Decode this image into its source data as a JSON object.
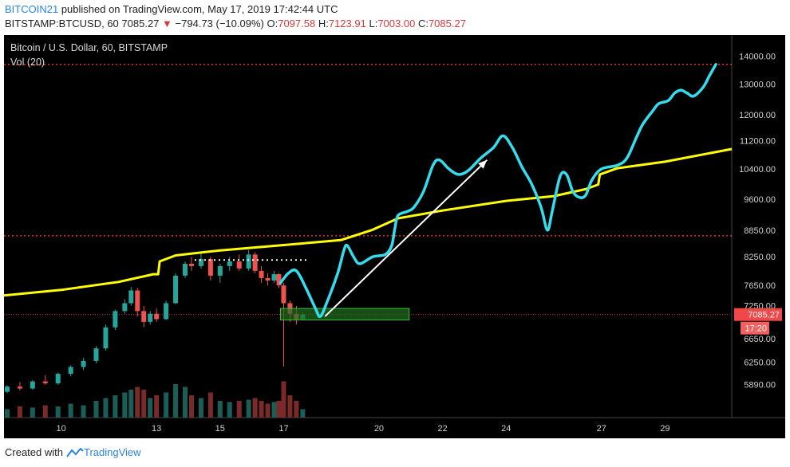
{
  "header": {
    "author": "BITCOIN21",
    "published_text": "published on TradingView.com, May 17, 2019 17:42:44 UTC",
    "symbol": "BITSTAMP:BTCUSD, 60",
    "last": "7085.27",
    "down_arrow": "▼",
    "change": "−794.73 (−10.09%)",
    "o_label": "O:",
    "o_value": "7097.58",
    "h_label": "H:",
    "h_value": "7123.91",
    "l_label": "L:",
    "l_value": "7003.00",
    "c_label": "C:",
    "c_value": "7085.27"
  },
  "legend": {
    "title": "Bitcoin / U.S. Dollar, 60, BITSTAMP",
    "volume": "Vol (20)"
  },
  "footer": {
    "created_with": "Created with",
    "brand": "TradingView"
  },
  "colors": {
    "background": "#000000",
    "axis_text": "#d0d0d0",
    "up": "#26a69a",
    "down": "#ef5350",
    "yellow_line": "#ffff00",
    "cyan_line": "#33ddee",
    "red_level": "#e03030",
    "zone_fill": "#1f6f1f",
    "zone_stroke": "#3fbf3f",
    "price_tag": "#f04848",
    "countdown_tag": "#f06060"
  },
  "chart_data": {
    "type": "candlestick",
    "scale": "log",
    "title": "Bitcoin / U.S. Dollar, 60, BITSTAMP",
    "ylim": [
      5400,
      14800
    ],
    "y_ticks": [
      5890,
      6250,
      6650,
      7250,
      7650,
      8250,
      8850,
      9600,
      10400,
      11200,
      12000,
      13000,
      14000
    ],
    "y_tick_labels": [
      "5890.00",
      "6250.00",
      "6650.00",
      "7250.00",
      "7650.00",
      "8250.00",
      "8850.00",
      "9600.00",
      "10400.00",
      "11200.00",
      "12000.00",
      "13000.00",
      "14000.00"
    ],
    "x_range_days": [
      8.2,
      31.1
    ],
    "x_ticks": [
      10,
      13,
      15,
      17,
      20,
      22,
      24,
      27,
      29
    ],
    "x_tick_labels": [
      "10",
      "13",
      "15",
      "17",
      "20",
      "22",
      "24",
      "27",
      "29"
    ],
    "last_price": 7085.27,
    "last_price_label": "7085.27",
    "countdown_label": "17:20",
    "levels": [
      {
        "name": "top",
        "price": 13700
      },
      {
        "name": "mid",
        "price": 8720
      },
      {
        "name": "current",
        "price": 7085
      }
    ],
    "resistance_dotted": {
      "price": 8180,
      "x_start": 14.2,
      "x_end": 17.8
    },
    "zone": {
      "x_start": 16.9,
      "x_end": 20.95,
      "price_low": 6985,
      "price_high": 7200
    },
    "arrow": {
      "from": [
        18.3,
        7050
      ],
      "to": [
        23.4,
        10650
      ]
    },
    "candles": [
      {
        "d": 8.3,
        "o": 5780,
        "h": 5880,
        "l": 5760,
        "c": 5860
      },
      {
        "d": 8.7,
        "o": 5860,
        "h": 5930,
        "l": 5800,
        "c": 5830
      },
      {
        "d": 9.1,
        "o": 5830,
        "h": 5960,
        "l": 5810,
        "c": 5940
      },
      {
        "d": 9.5,
        "o": 5940,
        "h": 6040,
        "l": 5890,
        "c": 5910
      },
      {
        "d": 9.9,
        "o": 5910,
        "h": 6080,
        "l": 5890,
        "c": 6060
      },
      {
        "d": 10.3,
        "o": 6060,
        "h": 6200,
        "l": 6020,
        "c": 6170
      },
      {
        "d": 10.7,
        "o": 6170,
        "h": 6320,
        "l": 6120,
        "c": 6270
      },
      {
        "d": 11.1,
        "o": 6270,
        "h": 6520,
        "l": 6230,
        "c": 6480
      },
      {
        "d": 11.4,
        "o": 6480,
        "h": 6900,
        "l": 6440,
        "c": 6850
      },
      {
        "d": 11.7,
        "o": 6850,
        "h": 7180,
        "l": 6800,
        "c": 7150
      },
      {
        "d": 12.0,
        "o": 7150,
        "h": 7380,
        "l": 7100,
        "c": 7300
      },
      {
        "d": 12.2,
        "o": 7300,
        "h": 7620,
        "l": 7250,
        "c": 7550
      },
      {
        "d": 12.4,
        "o": 7550,
        "h": 7600,
        "l": 7050,
        "c": 7150
      },
      {
        "d": 12.6,
        "o": 7150,
        "h": 7250,
        "l": 6850,
        "c": 6950
      },
      {
        "d": 12.8,
        "o": 6950,
        "h": 7150,
        "l": 6900,
        "c": 7100
      },
      {
        "d": 13.0,
        "o": 7100,
        "h": 7200,
        "l": 6950,
        "c": 7000
      },
      {
        "d": 13.3,
        "o": 7000,
        "h": 7350,
        "l": 6980,
        "c": 7300
      },
      {
        "d": 13.6,
        "o": 7300,
        "h": 7900,
        "l": 7280,
        "c": 7850
      },
      {
        "d": 13.9,
        "o": 7850,
        "h": 8150,
        "l": 7800,
        "c": 8100
      },
      {
        "d": 14.1,
        "o": 8100,
        "h": 8250,
        "l": 7950,
        "c": 8050
      },
      {
        "d": 14.4,
        "o": 8050,
        "h": 8350,
        "l": 8000,
        "c": 8200
      },
      {
        "d": 14.7,
        "o": 8200,
        "h": 8250,
        "l": 7750,
        "c": 7850
      },
      {
        "d": 15.0,
        "o": 7850,
        "h": 8100,
        "l": 7700,
        "c": 8050
      },
      {
        "d": 15.3,
        "o": 8050,
        "h": 8250,
        "l": 7950,
        "c": 8150
      },
      {
        "d": 15.6,
        "o": 8150,
        "h": 8300,
        "l": 7950,
        "c": 8000
      },
      {
        "d": 15.9,
        "o": 8000,
        "h": 8400,
        "l": 7950,
        "c": 8300
      },
      {
        "d": 16.1,
        "o": 8300,
        "h": 8350,
        "l": 7900,
        "c": 7950
      },
      {
        "d": 16.3,
        "o": 7950,
        "h": 8050,
        "l": 7700,
        "c": 7800
      },
      {
        "d": 16.5,
        "o": 7800,
        "h": 7900,
        "l": 7650,
        "c": 7750
      },
      {
        "d": 16.7,
        "o": 7750,
        "h": 7950,
        "l": 7700,
        "c": 7880
      },
      {
        "d": 16.85,
        "o": 7880,
        "h": 7900,
        "l": 7600,
        "c": 7650
      },
      {
        "d": 17.0,
        "o": 7650,
        "h": 7700,
        "l": 6180,
        "c": 7300
      },
      {
        "d": 17.2,
        "o": 7300,
        "h": 7350,
        "l": 6950,
        "c": 7100
      },
      {
        "d": 17.4,
        "o": 7100,
        "h": 7250,
        "l": 6900,
        "c": 7000
      },
      {
        "d": 17.6,
        "o": 7000,
        "h": 7124,
        "l": 7003,
        "c": 7085
      }
    ],
    "volume": [
      {
        "d": 8.3,
        "v": 0.15,
        "up": true
      },
      {
        "d": 8.7,
        "v": 0.2,
        "up": false
      },
      {
        "d": 9.1,
        "v": 0.18,
        "up": true
      },
      {
        "d": 9.5,
        "v": 0.22,
        "up": false
      },
      {
        "d": 9.9,
        "v": 0.2,
        "up": true
      },
      {
        "d": 10.3,
        "v": 0.25,
        "up": true
      },
      {
        "d": 10.7,
        "v": 0.22,
        "up": true
      },
      {
        "d": 11.1,
        "v": 0.3,
        "up": true
      },
      {
        "d": 11.4,
        "v": 0.35,
        "up": true
      },
      {
        "d": 11.7,
        "v": 0.4,
        "up": true
      },
      {
        "d": 12.0,
        "v": 0.45,
        "up": true
      },
      {
        "d": 12.2,
        "v": 0.5,
        "up": true
      },
      {
        "d": 12.4,
        "v": 0.55,
        "up": false
      },
      {
        "d": 12.6,
        "v": 0.5,
        "up": false
      },
      {
        "d": 12.8,
        "v": 0.35,
        "up": true
      },
      {
        "d": 13.0,
        "v": 0.4,
        "up": false
      },
      {
        "d": 13.3,
        "v": 0.45,
        "up": true
      },
      {
        "d": 13.6,
        "v": 0.6,
        "up": true
      },
      {
        "d": 13.9,
        "v": 0.55,
        "up": true
      },
      {
        "d": 14.1,
        "v": 0.4,
        "up": false
      },
      {
        "d": 14.4,
        "v": 0.35,
        "up": true
      },
      {
        "d": 14.7,
        "v": 0.45,
        "up": false
      },
      {
        "d": 15.0,
        "v": 0.3,
        "up": true
      },
      {
        "d": 15.3,
        "v": 0.28,
        "up": true
      },
      {
        "d": 15.6,
        "v": 0.3,
        "up": false
      },
      {
        "d": 15.9,
        "v": 0.32,
        "up": true
      },
      {
        "d": 16.1,
        "v": 0.35,
        "up": false
      },
      {
        "d": 16.3,
        "v": 0.3,
        "up": false
      },
      {
        "d": 16.5,
        "v": 0.25,
        "up": false
      },
      {
        "d": 16.7,
        "v": 0.28,
        "up": true
      },
      {
        "d": 16.85,
        "v": 0.3,
        "up": false
      },
      {
        "d": 17.0,
        "v": 0.65,
        "up": false
      },
      {
        "d": 17.2,
        "v": 0.4,
        "up": false
      },
      {
        "d": 17.4,
        "v": 0.3,
        "up": false
      },
      {
        "d": 17.6,
        "v": 0.15,
        "up": true
      }
    ],
    "yellow_line": [
      [
        8.2,
        7450
      ],
      [
        10.0,
        7560
      ],
      [
        11.8,
        7720
      ],
      [
        12.9,
        7880
      ],
      [
        13.05,
        7880
      ],
      [
        13.1,
        8150
      ],
      [
        13.6,
        8280
      ],
      [
        15.0,
        8390
      ],
      [
        17.0,
        8510
      ],
      [
        18.8,
        8620
      ],
      [
        19.8,
        8860
      ],
      [
        20.6,
        9130
      ],
      [
        22.0,
        9320
      ],
      [
        24.0,
        9560
      ],
      [
        25.5,
        9680
      ],
      [
        26.5,
        9860
      ],
      [
        26.9,
        9980
      ],
      [
        26.95,
        10250
      ],
      [
        27.5,
        10420
      ],
      [
        29.0,
        10600
      ],
      [
        31.1,
        10960
      ]
    ],
    "cyan_line": [
      [
        16.9,
        7700
      ],
      [
        17.15,
        7900
      ],
      [
        17.4,
        7950
      ],
      [
        17.7,
        7600
      ],
      [
        18.0,
        7200
      ],
      [
        18.15,
        7050
      ],
      [
        18.35,
        7300
      ],
      [
        18.7,
        7900
      ],
      [
        18.9,
        8400
      ],
      [
        19.0,
        8500
      ],
      [
        19.2,
        8250
      ],
      [
        19.4,
        8100
      ],
      [
        19.8,
        8250
      ],
      [
        20.2,
        8300
      ],
      [
        20.4,
        8500
      ],
      [
        20.5,
        8900
      ],
      [
        20.6,
        9200
      ],
      [
        20.9,
        9300
      ],
      [
        21.1,
        9400
      ],
      [
        21.4,
        9800
      ],
      [
        21.7,
        10500
      ],
      [
        21.9,
        10650
      ],
      [
        22.2,
        10400
      ],
      [
        22.5,
        10250
      ],
      [
        22.8,
        10350
      ],
      [
        23.2,
        10700
      ],
      [
        23.6,
        11000
      ],
      [
        23.9,
        11350
      ],
      [
        24.2,
        11000
      ],
      [
        24.5,
        10450
      ],
      [
        24.8,
        10000
      ],
      [
        25.1,
        9400
      ],
      [
        25.3,
        8850
      ],
      [
        25.45,
        9300
      ],
      [
        25.7,
        10200
      ],
      [
        25.9,
        10250
      ],
      [
        26.1,
        9800
      ],
      [
        26.3,
        9650
      ],
      [
        26.5,
        9700
      ],
      [
        26.7,
        10100
      ],
      [
        27.0,
        10400
      ],
      [
        27.5,
        10500
      ],
      [
        27.8,
        10700
      ],
      [
        28.1,
        11300
      ],
      [
        28.3,
        11700
      ],
      [
        28.6,
        12100
      ],
      [
        28.8,
        12350
      ],
      [
        29.1,
        12450
      ],
      [
        29.3,
        12700
      ],
      [
        29.5,
        12800
      ],
      [
        29.7,
        12700
      ],
      [
        29.9,
        12600
      ],
      [
        30.2,
        12900
      ],
      [
        30.4,
        13300
      ],
      [
        30.6,
        13700
      ]
    ]
  }
}
